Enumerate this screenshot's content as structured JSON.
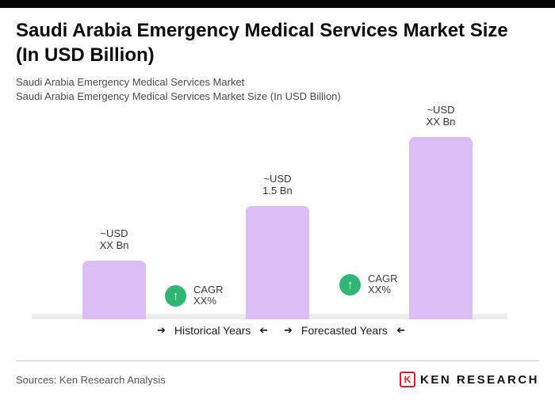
{
  "header": {
    "title": "Saudi Arabia Emergency Medical Services Market Size (In USD Billion)",
    "subtitle_line1": "Saudi Arabia Emergency Medical Services Market",
    "subtitle_line2": "Saudi Arabia Emergency Medical Services Market Size (In USD Billion)"
  },
  "chart_data": {
    "type": "bar",
    "title": "Saudi Arabia Emergency Medical Services Market Size (In USD Billion)",
    "unit": "USD Billion",
    "grid": false,
    "legend_position": "none",
    "bar_color": "#dcbdf6",
    "badge_color": "#2fb574",
    "bars": [
      {
        "value_label_line1": "~USD",
        "value_label_line2": "XX Bn",
        "value": null,
        "height_ratio": 0.32
      },
      {
        "value_label_line1": "~USD",
        "value_label_line2": "1.5 Bn",
        "value": 1.5,
        "height_ratio": 0.62
      },
      {
        "value_label_line1": "~USD",
        "value_label_line2": "XX Bn",
        "value": null,
        "height_ratio": 1.0
      }
    ],
    "cagr_badges": [
      {
        "line1": "CAGR",
        "line2": "XX%"
      },
      {
        "line1": "CAGR",
        "line2": "XX%"
      }
    ],
    "period_labels": [
      "Historical Years",
      "Forecasted Years"
    ]
  },
  "icons": {
    "right_arrow": "➔",
    "up_arrow": "↑"
  },
  "footer": {
    "sources": "Sources: Ken Research Analysis",
    "logo_letter": "K",
    "logo_text": "KEN RESEARCH"
  }
}
